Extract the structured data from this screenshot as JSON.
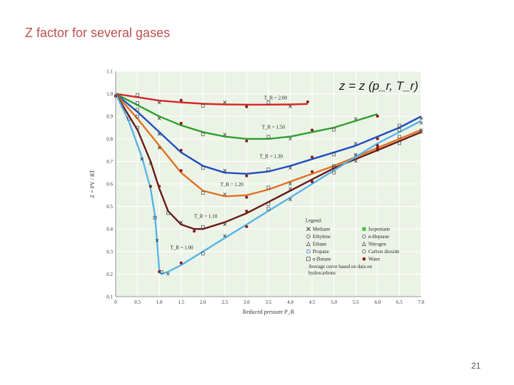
{
  "slide": {
    "title": "Z factor for several gases",
    "page_number": "21"
  },
  "chart_data": {
    "type": "line",
    "formula": "z = z (p_r, T_r)",
    "xlabel": "Reduced pressure P_R",
    "ylabel": "Z = PV / RT",
    "xlim": [
      0,
      7.0
    ],
    "ylim": [
      0.1,
      1.1
    ],
    "xticks": [
      "0",
      "0.5",
      "1.0",
      "1.5",
      "2.0",
      "2.5",
      "3.0",
      "3.5",
      "4.0",
      "4.5",
      "5.0",
      "5.5",
      "6.0",
      "6.5",
      "7.0"
    ],
    "yticks": [
      "0.1",
      "0.2",
      "0.3",
      "0.4",
      "0.5",
      "0.6",
      "0.7",
      "0.8",
      "0.9",
      "1.0",
      "1.1"
    ],
    "grid": true,
    "series": [
      {
        "name": "T_R = 2.00",
        "color": "#d62728",
        "x": [
          0,
          0.5,
          1.0,
          1.5,
          2.0,
          2.5,
          3.0,
          3.5,
          4.0,
          4.4
        ],
        "y": [
          1.0,
          0.985,
          0.97,
          0.962,
          0.956,
          0.953,
          0.952,
          0.952,
          0.953,
          0.955
        ]
      },
      {
        "name": "T_R = 1.50",
        "color": "#2ca02c",
        "x": [
          0,
          0.5,
          1.0,
          1.5,
          2.0,
          2.5,
          3.0,
          3.5,
          4.0,
          4.5,
          5.0,
          5.5,
          6.0
        ],
        "y": [
          1.0,
          0.95,
          0.9,
          0.86,
          0.83,
          0.81,
          0.8,
          0.8,
          0.81,
          0.83,
          0.85,
          0.88,
          0.91
        ]
      },
      {
        "name": "T_R = 1.30",
        "color": "#1f4fbf",
        "x": [
          0,
          0.5,
          1.0,
          1.5,
          2.0,
          2.5,
          3.0,
          3.5,
          4.0,
          4.5,
          5.0,
          5.5,
          6.0,
          6.5,
          7.0
        ],
        "y": [
          1.0,
          0.92,
          0.83,
          0.74,
          0.68,
          0.65,
          0.645,
          0.655,
          0.68,
          0.71,
          0.74,
          0.77,
          0.81,
          0.85,
          0.9
        ]
      },
      {
        "name": "T_R = 1.20",
        "color": "#e07020",
        "x": [
          0,
          0.5,
          1.0,
          1.5,
          2.0,
          2.5,
          3.0,
          3.5,
          4.0,
          4.5,
          5.0,
          5.5,
          6.0,
          6.5,
          7.0
        ],
        "y": [
          1.0,
          0.89,
          0.77,
          0.65,
          0.57,
          0.545,
          0.55,
          0.575,
          0.61,
          0.645,
          0.68,
          0.72,
          0.76,
          0.8,
          0.84
        ]
      },
      {
        "name": "T_R = 1.10",
        "color": "#6b1a1a",
        "x": [
          0,
          0.5,
          0.8,
          1.0,
          1.2,
          1.5,
          1.8,
          2.0,
          2.5,
          3.0,
          3.5,
          4.0,
          4.5,
          5.0,
          5.5,
          6.0,
          6.5,
          7.0
        ],
        "y": [
          1.0,
          0.84,
          0.7,
          0.58,
          0.48,
          0.42,
          0.4,
          0.4,
          0.43,
          0.47,
          0.52,
          0.57,
          0.62,
          0.67,
          0.71,
          0.75,
          0.79,
          0.83
        ]
      },
      {
        "name": "T_R = 1.00",
        "color": "#56b4e9",
        "x": [
          0,
          0.3,
          0.6,
          0.8,
          0.9,
          0.95,
          1.0,
          1.05,
          1.2,
          1.5,
          2.0,
          2.5,
          3.0,
          3.5,
          4.0,
          4.5,
          5.0,
          5.5,
          6.0,
          6.5,
          7.0
        ],
        "y": [
          1.0,
          0.88,
          0.72,
          0.58,
          0.46,
          0.34,
          0.22,
          0.2,
          0.21,
          0.24,
          0.3,
          0.36,
          0.42,
          0.48,
          0.54,
          0.6,
          0.66,
          0.72,
          0.78,
          0.83,
          0.88
        ]
      }
    ],
    "legend": {
      "title": "Legend:",
      "position": "bottom-right",
      "items": [
        {
          "marker": "x",
          "label": "Methane",
          "color": "#222"
        },
        {
          "marker": "square-filled",
          "label": "Isopentane",
          "color": "#3cc43c"
        },
        {
          "marker": "circle",
          "label": "Ethylene",
          "color": "#555"
        },
        {
          "marker": "circle",
          "label": "n-Heptane",
          "color": "#555"
        },
        {
          "marker": "triangle",
          "label": "Ethane",
          "color": "#555"
        },
        {
          "marker": "triangle",
          "label": "Nitrogen",
          "color": "#555"
        },
        {
          "marker": "circle",
          "label": "Propane",
          "color": "#3a7ad8"
        },
        {
          "marker": "circle",
          "label": "Carbon dioxide",
          "color": "#555"
        },
        {
          "marker": "square",
          "label": "n-Butane",
          "color": "#555"
        },
        {
          "marker": "circle-filled",
          "label": "Water",
          "color": "#8b1a1a"
        }
      ],
      "note": "Average curve based on data on hydrocarbons"
    }
  }
}
